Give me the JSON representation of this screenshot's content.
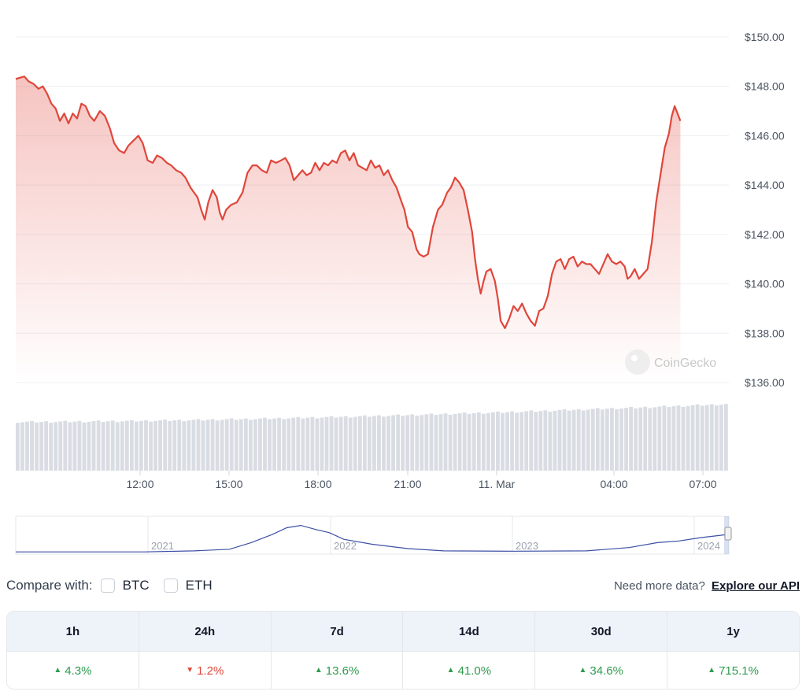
{
  "watermark": "CoinGecko",
  "chart_data": {
    "type": "line",
    "y_axis": {
      "ticks": [
        "$150.00",
        "$148.00",
        "$146.00",
        "$144.00",
        "$142.00",
        "$140.00",
        "$138.00",
        "$136.00"
      ],
      "tick_values": [
        150,
        148,
        146,
        144,
        142,
        140,
        138,
        136
      ],
      "ylim": [
        136,
        150
      ]
    },
    "x_axis": {
      "ticks": [
        "12:00",
        "15:00",
        "18:00",
        "21:00",
        "11. Mar",
        "04:00",
        "07:00"
      ]
    },
    "series": [
      {
        "color": "#e0463b",
        "points": [
          [
            0.0,
            148.3
          ],
          [
            0.012,
            148.4
          ],
          [
            0.018,
            148.2
          ],
          [
            0.025,
            148.1
          ],
          [
            0.032,
            147.9
          ],
          [
            0.038,
            148.0
          ],
          [
            0.044,
            147.7
          ],
          [
            0.05,
            147.3
          ],
          [
            0.056,
            147.1
          ],
          [
            0.062,
            146.6
          ],
          [
            0.068,
            146.9
          ],
          [
            0.074,
            146.5
          ],
          [
            0.08,
            146.9
          ],
          [
            0.086,
            146.7
          ],
          [
            0.092,
            147.3
          ],
          [
            0.098,
            147.2
          ],
          [
            0.104,
            146.8
          ],
          [
            0.11,
            146.6
          ],
          [
            0.118,
            147.0
          ],
          [
            0.125,
            146.8
          ],
          [
            0.132,
            146.3
          ],
          [
            0.138,
            145.7
          ],
          [
            0.145,
            145.4
          ],
          [
            0.152,
            145.3
          ],
          [
            0.158,
            145.6
          ],
          [
            0.165,
            145.8
          ],
          [
            0.172,
            146.0
          ],
          [
            0.178,
            145.7
          ],
          [
            0.185,
            145.0
          ],
          [
            0.192,
            144.9
          ],
          [
            0.198,
            145.2
          ],
          [
            0.205,
            145.1
          ],
          [
            0.212,
            144.9
          ],
          [
            0.218,
            144.8
          ],
          [
            0.225,
            144.6
          ],
          [
            0.232,
            144.5
          ],
          [
            0.238,
            144.3
          ],
          [
            0.245,
            143.9
          ],
          [
            0.25,
            143.7
          ],
          [
            0.255,
            143.5
          ],
          [
            0.26,
            143.0
          ],
          [
            0.265,
            142.6
          ],
          [
            0.27,
            143.3
          ],
          [
            0.276,
            143.8
          ],
          [
            0.282,
            143.5
          ],
          [
            0.286,
            142.9
          ],
          [
            0.29,
            142.6
          ],
          [
            0.295,
            143.0
          ],
          [
            0.302,
            143.2
          ],
          [
            0.31,
            143.3
          ],
          [
            0.318,
            143.7
          ],
          [
            0.325,
            144.5
          ],
          [
            0.332,
            144.8
          ],
          [
            0.338,
            144.8
          ],
          [
            0.345,
            144.6
          ],
          [
            0.352,
            144.5
          ],
          [
            0.358,
            145.0
          ],
          [
            0.365,
            144.9
          ],
          [
            0.372,
            145.0
          ],
          [
            0.378,
            145.1
          ],
          [
            0.384,
            144.8
          ],
          [
            0.39,
            144.2
          ],
          [
            0.396,
            144.4
          ],
          [
            0.402,
            144.6
          ],
          [
            0.408,
            144.4
          ],
          [
            0.414,
            144.5
          ],
          [
            0.42,
            144.9
          ],
          [
            0.426,
            144.6
          ],
          [
            0.432,
            144.9
          ],
          [
            0.438,
            144.8
          ],
          [
            0.444,
            145.0
          ],
          [
            0.45,
            144.9
          ],
          [
            0.456,
            145.3
          ],
          [
            0.462,
            145.4
          ],
          [
            0.468,
            145.0
          ],
          [
            0.474,
            145.3
          ],
          [
            0.48,
            144.8
          ],
          [
            0.486,
            144.7
          ],
          [
            0.492,
            144.6
          ],
          [
            0.498,
            145.0
          ],
          [
            0.504,
            144.7
          ],
          [
            0.51,
            144.8
          ],
          [
            0.516,
            144.4
          ],
          [
            0.522,
            144.6
          ],
          [
            0.528,
            144.2
          ],
          [
            0.534,
            143.9
          ],
          [
            0.54,
            143.4
          ],
          [
            0.545,
            143.0
          ],
          [
            0.55,
            142.3
          ],
          [
            0.556,
            142.1
          ],
          [
            0.562,
            141.4
          ],
          [
            0.566,
            141.2
          ],
          [
            0.572,
            141.1
          ],
          [
            0.578,
            141.2
          ],
          [
            0.585,
            142.3
          ],
          [
            0.592,
            143.0
          ],
          [
            0.598,
            143.2
          ],
          [
            0.605,
            143.7
          ],
          [
            0.61,
            143.9
          ],
          [
            0.616,
            144.3
          ],
          [
            0.622,
            144.1
          ],
          [
            0.628,
            143.8
          ],
          [
            0.634,
            143.0
          ],
          [
            0.64,
            142.1
          ],
          [
            0.644,
            141.0
          ],
          [
            0.648,
            140.2
          ],
          [
            0.652,
            139.6
          ],
          [
            0.656,
            140.1
          ],
          [
            0.66,
            140.5
          ],
          [
            0.666,
            140.6
          ],
          [
            0.672,
            140.1
          ],
          [
            0.676,
            139.4
          ],
          [
            0.68,
            138.5
          ],
          [
            0.686,
            138.2
          ],
          [
            0.692,
            138.6
          ],
          [
            0.698,
            139.1
          ],
          [
            0.704,
            138.9
          ],
          [
            0.71,
            139.2
          ],
          [
            0.716,
            138.8
          ],
          [
            0.722,
            138.5
          ],
          [
            0.728,
            138.3
          ],
          [
            0.734,
            138.9
          ],
          [
            0.74,
            139.0
          ],
          [
            0.746,
            139.5
          ],
          [
            0.752,
            140.4
          ],
          [
            0.758,
            140.9
          ],
          [
            0.764,
            141.0
          ],
          [
            0.77,
            140.6
          ],
          [
            0.776,
            141.0
          ],
          [
            0.782,
            141.1
          ],
          [
            0.788,
            140.7
          ],
          [
            0.794,
            140.9
          ],
          [
            0.8,
            140.8
          ],
          [
            0.806,
            140.8
          ],
          [
            0.812,
            140.6
          ],
          [
            0.818,
            140.4
          ],
          [
            0.824,
            140.8
          ],
          [
            0.83,
            141.2
          ],
          [
            0.836,
            140.9
          ],
          [
            0.842,
            140.8
          ],
          [
            0.848,
            140.9
          ],
          [
            0.854,
            140.7
          ],
          [
            0.858,
            140.2
          ],
          [
            0.862,
            140.3
          ],
          [
            0.868,
            140.6
          ],
          [
            0.874,
            140.2
          ],
          [
            0.88,
            140.4
          ],
          [
            0.886,
            140.6
          ],
          [
            0.892,
            141.7
          ],
          [
            0.898,
            143.3
          ],
          [
            0.904,
            144.4
          ],
          [
            0.91,
            145.5
          ],
          [
            0.916,
            146.1
          ],
          [
            0.92,
            146.8
          ],
          [
            0.924,
            147.2
          ],
          [
            0.928,
            146.9
          ],
          [
            0.932,
            146.6
          ]
        ]
      }
    ],
    "volume": {
      "bars": 150,
      "start": 0.62,
      "end": 0.85,
      "note_ratio_scale": "relative"
    },
    "navigator": {
      "labels": [
        "2021",
        "2022",
        "2023",
        "2024"
      ],
      "points": [
        [
          0,
          0.02
        ],
        [
          0.18,
          0.02
        ],
        [
          0.25,
          0.05
        ],
        [
          0.3,
          0.1
        ],
        [
          0.33,
          0.3
        ],
        [
          0.36,
          0.55
        ],
        [
          0.38,
          0.75
        ],
        [
          0.4,
          0.82
        ],
        [
          0.42,
          0.7
        ],
        [
          0.44,
          0.6
        ],
        [
          0.46,
          0.4
        ],
        [
          0.5,
          0.25
        ],
        [
          0.55,
          0.12
        ],
        [
          0.6,
          0.05
        ],
        [
          0.7,
          0.04
        ],
        [
          0.8,
          0.05
        ],
        [
          0.86,
          0.15
        ],
        [
          0.9,
          0.3
        ],
        [
          0.93,
          0.35
        ],
        [
          0.96,
          0.45
        ],
        [
          1.0,
          0.55
        ]
      ]
    }
  },
  "compare": {
    "label": "Compare with:",
    "options": [
      "BTC",
      "ETH"
    ]
  },
  "api": {
    "prefix": "Need more data?",
    "link": "Explore our API"
  },
  "performance": {
    "periods": [
      "1h",
      "24h",
      "7d",
      "14d",
      "30d",
      "1y"
    ],
    "values": [
      {
        "text": "4.3%",
        "direction": "up"
      },
      {
        "text": "1.2%",
        "direction": "down"
      },
      {
        "text": "13.6%",
        "direction": "up"
      },
      {
        "text": "41.0%",
        "direction": "up"
      },
      {
        "text": "34.6%",
        "direction": "up"
      },
      {
        "text": "715.1%",
        "direction": "up"
      }
    ],
    "colors": {
      "up": "#2e9b4e",
      "down": "#e0463b"
    }
  }
}
